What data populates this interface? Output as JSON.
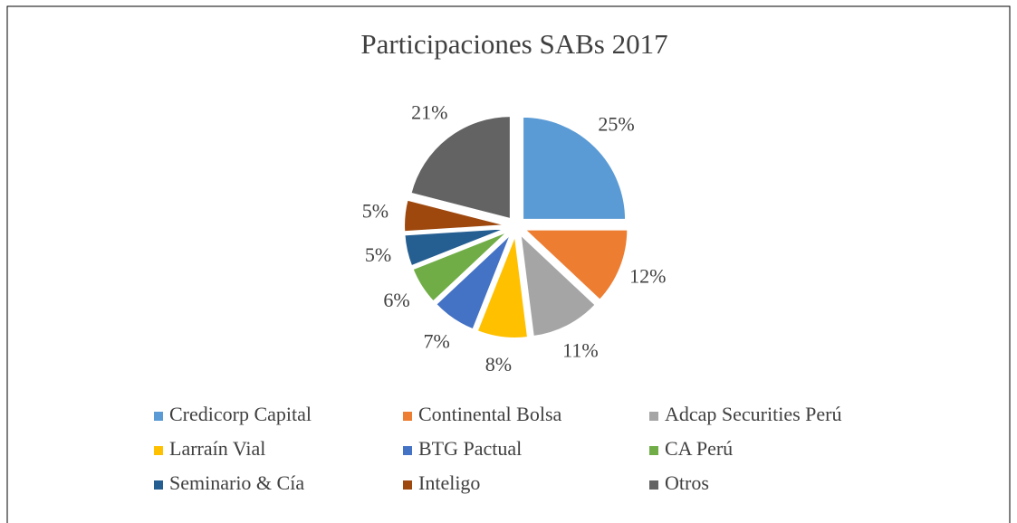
{
  "chart_data": {
    "type": "pie",
    "title": "Participaciones SABs 2017",
    "categories": [
      "Credicorp Capital",
      "Continental Bolsa",
      "Adcap Securities Perú",
      "Larraín Vial",
      "BTG Pactual",
      "CA Perú",
      "Seminario & Cía",
      "Inteligo",
      "Otros"
    ],
    "values": [
      25,
      12,
      11,
      8,
      7,
      6,
      5,
      5,
      21
    ],
    "value_labels": [
      "25%",
      "12%",
      "11%",
      "8%",
      "7%",
      "6%",
      "5%",
      "5%",
      "21%"
    ],
    "colors": [
      "#5b9bd5",
      "#ed7d31",
      "#a5a5a5",
      "#ffc000",
      "#4472c4",
      "#70ad47",
      "#255e91",
      "#9e480e",
      "#636363"
    ],
    "legend": "bottom"
  }
}
